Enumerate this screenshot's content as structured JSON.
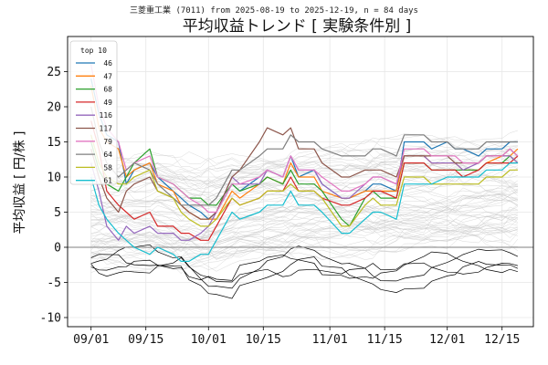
{
  "chart_data": {
    "type": "line",
    "suptitle": "三菱重工業 (7011) from 2025-08-19 to 2025-12-19, n = 84 days",
    "title": "平均収益トレンド [ 実験条件別 ]",
    "xlabel": "",
    "ylabel": "平均収益 [ 円/株 ]",
    "xlim": [
      "2025-08-26",
      "2025-12-23"
    ],
    "ylim": [
      -11.3,
      30
    ],
    "x_ticks": [
      "09/01",
      "09/15",
      "10/01",
      "10/15",
      "11/01",
      "11/15",
      "12/01",
      "12/15"
    ],
    "x_tick_dates": [
      "2025-09-01",
      "2025-09-15",
      "2025-10-01",
      "2025-10-15",
      "2025-11-01",
      "2025-11-15",
      "2025-12-01",
      "2025-12-15"
    ],
    "y_ticks": [
      -10,
      -5,
      0,
      5,
      10,
      15,
      20,
      25
    ],
    "grid": true,
    "zero_line": true,
    "legend_title": "top 10",
    "legend_position": "upper-left",
    "background_series_note": "many light gray lines for remaining conditions; several black lines for the lowest conditions",
    "x": [
      "2025-09-01",
      "2025-09-03",
      "2025-09-05",
      "2025-09-08",
      "2025-09-10",
      "2025-09-12",
      "2025-09-16",
      "2025-09-18",
      "2025-09-22",
      "2025-09-24",
      "2025-09-26",
      "2025-09-29",
      "2025-10-01",
      "2025-10-03",
      "2025-10-07",
      "2025-10-09",
      "2025-10-14",
      "2025-10-16",
      "2025-10-20",
      "2025-10-22",
      "2025-10-24",
      "2025-10-28",
      "2025-10-30",
      "2025-11-04",
      "2025-11-06",
      "2025-11-10",
      "2025-11-12",
      "2025-11-14",
      "2025-11-18",
      "2025-11-20",
      "2025-11-25",
      "2025-11-27",
      "2025-12-01",
      "2025-12-03",
      "2025-12-05",
      "2025-12-09",
      "2025-12-11",
      "2025-12-15",
      "2025-12-17",
      "2025-12-19"
    ],
    "series": [
      {
        "name": "46",
        "color": "#1f77b4",
        "values": [
          24,
          19,
          16,
          15,
          9,
          11,
          12,
          10,
          8,
          7,
          6,
          5,
          4,
          5,
          9,
          8,
          10,
          11,
          10,
          13,
          10,
          11,
          9,
          7,
          7,
          8,
          9,
          9,
          8,
          15,
          15,
          14,
          15,
          14,
          14,
          13,
          14,
          14,
          15,
          15
        ]
      },
      {
        "name": "47",
        "color": "#ff7f0e",
        "values": [
          23,
          17,
          15,
          14,
          10,
          11,
          12,
          9,
          8,
          6,
          5,
          4,
          4,
          4,
          8,
          7,
          9,
          10,
          9,
          12,
          10,
          10,
          8,
          7,
          7,
          8,
          8,
          8,
          8,
          13,
          13,
          12,
          12,
          12,
          11,
          11,
          12,
          13,
          13,
          14
        ]
      },
      {
        "name": "68",
        "color": "#2ca02c",
        "values": [
          15,
          11,
          9,
          8,
          10,
          12,
          14,
          10,
          9,
          8,
          7,
          7,
          6,
          6,
          9,
          8,
          9,
          10,
          9,
          11,
          9,
          9,
          8,
          4,
          3,
          7,
          8,
          7,
          7,
          12,
          12,
          11,
          11,
          11,
          11,
          11,
          12,
          12,
          13,
          12
        ]
      },
      {
        "name": "49",
        "color": "#d62728",
        "values": [
          18,
          14,
          8,
          6,
          5,
          4,
          5,
          3,
          3,
          2,
          2,
          1,
          1,
          3,
          7,
          6,
          7,
          8,
          8,
          10,
          8,
          8,
          7,
          6,
          6,
          7,
          8,
          8,
          7,
          12,
          12,
          11,
          11,
          11,
          10,
          11,
          12,
          12,
          12,
          13
        ]
      },
      {
        "name": "116",
        "color": "#9467bd",
        "values": [
          12,
          8,
          3,
          1,
          3,
          2,
          3,
          2,
          2,
          1,
          1,
          2,
          3,
          5,
          10,
          9,
          9,
          11,
          10,
          13,
          11,
          11,
          9,
          7,
          7,
          9,
          10,
          10,
          9,
          13,
          13,
          12,
          12,
          12,
          11,
          12,
          13,
          13,
          13,
          12
        ]
      },
      {
        "name": "117",
        "color": "#8c564b",
        "values": [
          14,
          10,
          7,
          5,
          8,
          9,
          10,
          8,
          7,
          6,
          5,
          4,
          4,
          5,
          10,
          11,
          15,
          17,
          16,
          17,
          14,
          14,
          12,
          10,
          10,
          11,
          11,
          11,
          10,
          13,
          13,
          13,
          13,
          12,
          12,
          12,
          13,
          13,
          14,
          13
        ]
      },
      {
        "name": "79",
        "color": "#e377c2",
        "values": [
          26,
          20,
          17,
          15,
          11,
          12,
          13,
          10,
          9,
          8,
          7,
          6,
          5,
          5,
          9,
          9,
          10,
          11,
          10,
          13,
          11,
          11,
          10,
          8,
          8,
          9,
          10,
          10,
          9,
          14,
          14,
          13,
          13,
          13,
          12,
          12,
          13,
          13,
          14,
          13
        ]
      },
      {
        "name": "64",
        "color": "#7f7f7f",
        "values": [
          20,
          15,
          12,
          10,
          11,
          12,
          11,
          9,
          7,
          6,
          6,
          6,
          6,
          7,
          11,
          11,
          13,
          14,
          14,
          16,
          15,
          15,
          14,
          13,
          13,
          13,
          14,
          14,
          13,
          16,
          16,
          15,
          15,
          14,
          14,
          14,
          15,
          15,
          15,
          15
        ]
      },
      {
        "name": "58",
        "color": "#bcbd22",
        "values": [
          16,
          12,
          10,
          9,
          9,
          10,
          11,
          8,
          7,
          5,
          4,
          3,
          3,
          4,
          7,
          6,
          7,
          8,
          8,
          9,
          8,
          8,
          7,
          3,
          3,
          6,
          7,
          6,
          6,
          10,
          10,
          9,
          9,
          9,
          9,
          9,
          10,
          10,
          11,
          11
        ]
      },
      {
        "name": "61",
        "color": "#17becf",
        "values": [
          10,
          6,
          4,
          2,
          1,
          0,
          -1,
          0,
          -1,
          -2,
          -2,
          -1,
          -1,
          1,
          5,
          4,
          5,
          6,
          6,
          8,
          6,
          6,
          5,
          2,
          2,
          4,
          5,
          5,
          4,
          9,
          9,
          9,
          10,
          10,
          10,
          10,
          11,
          11,
          12,
          12
        ]
      }
    ]
  }
}
